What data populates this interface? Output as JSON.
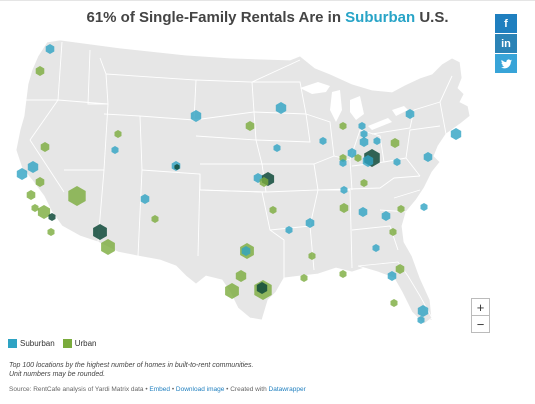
{
  "title": {
    "prefix": "61% of Single-Family Rentals Are in ",
    "highlight": "Suburban",
    "suffix": " U.S."
  },
  "share": {
    "facebook": "f",
    "linkedin": "in",
    "twitter": "✔"
  },
  "zoom": {
    "in": "+",
    "out": "−"
  },
  "legend": [
    {
      "label": "Suburban",
      "color": "#2ea3c3"
    },
    {
      "label": "Urban",
      "color": "#7aab3c"
    }
  ],
  "note": {
    "line1": "Top 100 locations by the highest number of homes in built-to-rent communities.",
    "line2": "Unit numbers may be rounded."
  },
  "source": {
    "text": "Source: RentCafe analysis of Yardi Matrix data • ",
    "embed": "Embed",
    "sep1": " • ",
    "download": "Download image",
    "sep2": " • Created with ",
    "datawrapper": "Datawrapper"
  },
  "colors": {
    "suburban": "#2ea3c3",
    "urban": "#7aab3c",
    "land": "#e6e6e6",
    "border": "#ffffff",
    "highlight": "#28a4c7"
  },
  "map": {
    "type": "symbol map",
    "projection": "albers-usa",
    "symbol": "hexagon"
  }
}
